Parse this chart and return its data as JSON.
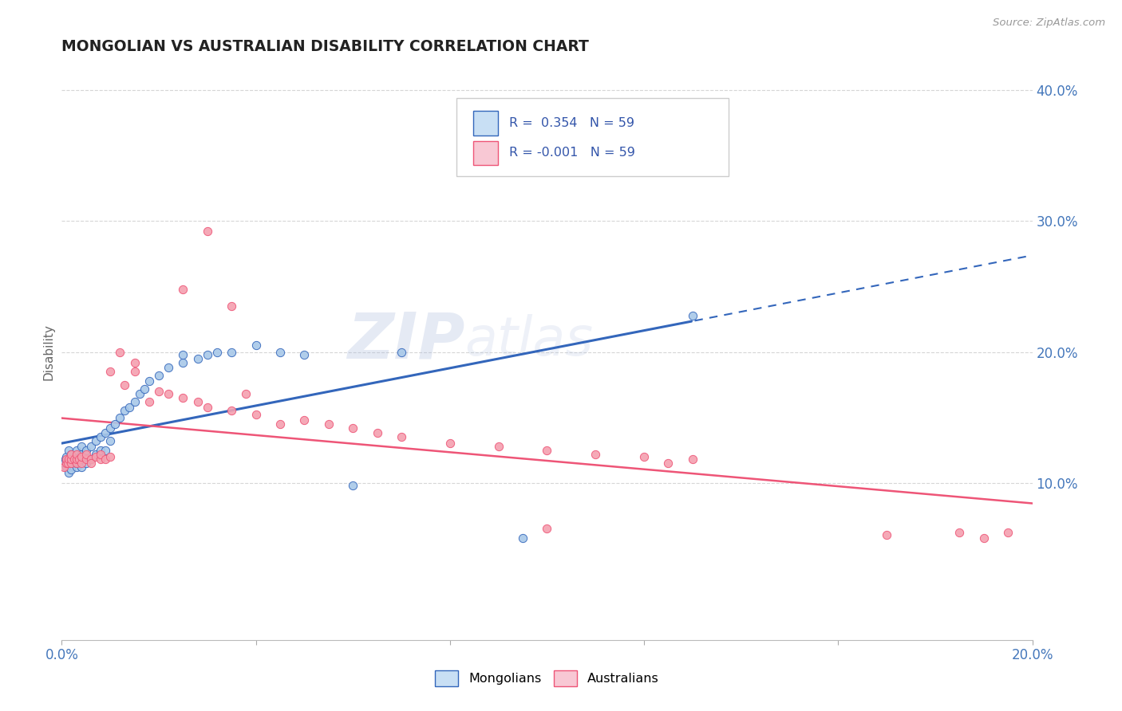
{
  "title": "MONGOLIAN VS AUSTRALIAN DISABILITY CORRELATION CHART",
  "source": "Source: ZipAtlas.com",
  "ylabel": "Disability",
  "watermark_zip": "ZIP",
  "watermark_atlas": "atlas",
  "R_mongolian": 0.354,
  "R_australian": -0.001,
  "N_mongolian": 59,
  "N_australian": 59,
  "xlim": [
    0.0,
    0.2
  ],
  "ylim": [
    -0.02,
    0.42
  ],
  "yticks": [
    0.1,
    0.2,
    0.3,
    0.4
  ],
  "ytick_labels": [
    "10.0%",
    "20.0%",
    "30.0%",
    "40.0%"
  ],
  "xticks": [
    0.0,
    0.04,
    0.08,
    0.12,
    0.16,
    0.2
  ],
  "color_mongolian": "#a8c8e8",
  "color_australian": "#f4a0b0",
  "line_color_mongolian": "#3366bb",
  "line_color_australian": "#ee5577",
  "background_color": "#ffffff",
  "grid_color": "#cccccc",
  "legend_box_color_mongolian": "#c8dff4",
  "legend_box_color_australian": "#f8c8d4",
  "mongolian_x": [
    0.0005,
    0.0008,
    0.001,
    0.001,
    0.0012,
    0.0015,
    0.0015,
    0.0018,
    0.002,
    0.002,
    0.002,
    0.0022,
    0.0025,
    0.003,
    0.003,
    0.003,
    0.003,
    0.0032,
    0.0035,
    0.004,
    0.004,
    0.004,
    0.004,
    0.005,
    0.005,
    0.005,
    0.006,
    0.006,
    0.007,
    0.007,
    0.008,
    0.008,
    0.009,
    0.009,
    0.01,
    0.01,
    0.011,
    0.012,
    0.013,
    0.014,
    0.015,
    0.016,
    0.017,
    0.018,
    0.02,
    0.022,
    0.025,
    0.025,
    0.028,
    0.03,
    0.032,
    0.035,
    0.04,
    0.045,
    0.05,
    0.06,
    0.07,
    0.095,
    0.13
  ],
  "mongolian_y": [
    0.115,
    0.118,
    0.112,
    0.12,
    0.115,
    0.108,
    0.125,
    0.115,
    0.11,
    0.118,
    0.122,
    0.115,
    0.118,
    0.112,
    0.115,
    0.12,
    0.125,
    0.118,
    0.115,
    0.112,
    0.118,
    0.122,
    0.128,
    0.115,
    0.12,
    0.125,
    0.118,
    0.128,
    0.122,
    0.132,
    0.125,
    0.135,
    0.125,
    0.138,
    0.132,
    0.142,
    0.145,
    0.15,
    0.155,
    0.158,
    0.162,
    0.168,
    0.172,
    0.178,
    0.182,
    0.188,
    0.192,
    0.198,
    0.195,
    0.198,
    0.2,
    0.2,
    0.205,
    0.2,
    0.198,
    0.098,
    0.2,
    0.058,
    0.228
  ],
  "australian_x": [
    0.0005,
    0.001,
    0.001,
    0.0012,
    0.0015,
    0.002,
    0.002,
    0.002,
    0.0025,
    0.003,
    0.003,
    0.003,
    0.0035,
    0.004,
    0.004,
    0.005,
    0.005,
    0.006,
    0.006,
    0.007,
    0.008,
    0.008,
    0.009,
    0.01,
    0.01,
    0.012,
    0.013,
    0.015,
    0.015,
    0.018,
    0.02,
    0.022,
    0.025,
    0.028,
    0.03,
    0.035,
    0.038,
    0.04,
    0.045,
    0.05,
    0.055,
    0.06,
    0.065,
    0.07,
    0.08,
    0.09,
    0.1,
    0.11,
    0.12,
    0.125,
    0.13,
    0.025,
    0.03,
    0.035,
    0.1,
    0.17,
    0.185,
    0.19,
    0.195
  ],
  "australian_y": [
    0.112,
    0.115,
    0.118,
    0.115,
    0.118,
    0.115,
    0.118,
    0.122,
    0.118,
    0.115,
    0.118,
    0.122,
    0.118,
    0.115,
    0.12,
    0.118,
    0.122,
    0.118,
    0.115,
    0.12,
    0.118,
    0.122,
    0.118,
    0.12,
    0.185,
    0.2,
    0.175,
    0.185,
    0.192,
    0.162,
    0.17,
    0.168,
    0.165,
    0.162,
    0.158,
    0.155,
    0.168,
    0.152,
    0.145,
    0.148,
    0.145,
    0.142,
    0.138,
    0.135,
    0.13,
    0.128,
    0.125,
    0.122,
    0.12,
    0.115,
    0.118,
    0.248,
    0.292,
    0.235,
    0.065,
    0.06,
    0.062,
    0.058,
    0.062
  ]
}
